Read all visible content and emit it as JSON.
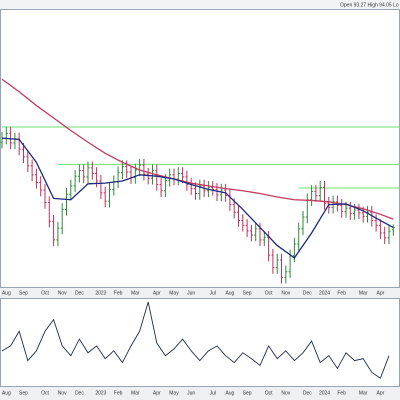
{
  "chart_data": {
    "type": "ohlc",
    "header": "Open 93.27 High 94.05  Lo",
    "ylim": [
      85,
      125
    ],
    "up_color": "#2e8b3a",
    "down_color": "#c2305c",
    "categories": [
      null,
      "Aug",
      null,
      null,
      null,
      "Sep",
      null,
      null,
      null,
      null,
      "Oct",
      null,
      null,
      null,
      "Nov",
      null,
      null,
      null,
      "Dec",
      null,
      null,
      null,
      null,
      "2023",
      null,
      null,
      null,
      "Feb",
      null,
      null,
      null,
      "Mar",
      null,
      null,
      null,
      null,
      "Apr",
      null,
      null,
      null,
      "May",
      null,
      null,
      null,
      "Jun",
      null,
      null,
      null,
      null,
      "Jul",
      null,
      null,
      null,
      "Aug",
      null,
      null,
      null,
      "Sep",
      null,
      null,
      null,
      null,
      "Oct",
      null,
      null,
      null,
      "Nov",
      null,
      null,
      null,
      null,
      "Dec",
      null,
      null,
      null,
      "2024",
      null,
      null,
      null,
      "Feb",
      null,
      null,
      null,
      null,
      "Mar",
      null,
      null,
      null,
      "Apr",
      null,
      null,
      null
    ],
    "open": [
      105.9,
      106.5,
      107.2,
      105.8,
      106.4,
      104.9,
      103.8,
      102.5,
      101.2,
      100.1,
      99.0,
      97.2,
      94.5,
      91.8,
      93.5,
      96.2,
      98.4,
      99.6,
      101.0,
      101.8,
      100.9,
      102.2,
      101.4,
      100.3,
      98.6,
      97.4,
      99.1,
      100.2,
      101.5,
      102.4,
      101.6,
      100.8,
      101.9,
      102.6,
      101.3,
      100.7,
      101.8,
      99.8,
      98.9,
      100.4,
      101.2,
      100.6,
      101.4,
      100.9,
      99.8,
      99.2,
      98.5,
      99.6,
      98.9,
      99.4,
      99.1,
      98.3,
      99.0,
      98.2,
      96.9,
      95.8,
      94.6,
      93.9,
      93.1,
      92.5,
      93.4,
      91.8,
      92.2,
      89.6,
      87.8,
      88.9,
      86.4,
      87.2,
      89.5,
      91.2,
      93.4,
      95.1,
      97.6,
      98.8,
      98.2,
      99.4,
      97.1,
      96.5,
      97.3,
      96.8,
      95.9,
      96.4,
      95.6,
      96.1,
      95.7,
      95.2,
      95.8,
      94.6,
      93.9,
      92.8,
      92.1,
      93.27
    ],
    "high": [
      107.4,
      108.1,
      108.1,
      107.3,
      107.3,
      105.8,
      104.7,
      103.4,
      102.1,
      101.0,
      99.9,
      98.1,
      95.4,
      94.4,
      97.1,
      99.3,
      100.5,
      101.9,
      102.7,
      102.7,
      103.1,
      103.1,
      102.3,
      101.2,
      99.5,
      100.0,
      101.1,
      102.4,
      103.3,
      103.3,
      102.5,
      102.8,
      103.5,
      103.5,
      102.2,
      102.7,
      102.7,
      100.7,
      101.3,
      102.1,
      102.1,
      102.3,
      102.3,
      101.8,
      100.7,
      100.1,
      100.5,
      100.5,
      100.3,
      100.3,
      100.0,
      99.9,
      99.9,
      99.1,
      97.8,
      96.7,
      95.5,
      94.8,
      94.0,
      94.3,
      94.3,
      93.1,
      93.1,
      90.5,
      89.8,
      89.8,
      88.1,
      90.4,
      92.1,
      94.3,
      96.0,
      98.5,
      99.7,
      99.7,
      100.3,
      100.3,
      98.0,
      98.2,
      98.2,
      97.7,
      97.3,
      97.3,
      97.0,
      97.0,
      96.6,
      96.7,
      96.7,
      95.5,
      94.8,
      93.7,
      93.9,
      94.05
    ],
    "low": [
      105.0,
      105.6,
      104.9,
      104.9,
      104.0,
      102.9,
      101.6,
      100.3,
      99.2,
      98.1,
      96.3,
      93.6,
      90.9,
      90.9,
      92.6,
      95.3,
      97.5,
      98.7,
      100.1,
      100.0,
      100.0,
      100.5,
      99.4,
      97.7,
      96.5,
      96.5,
      98.2,
      99.3,
      100.6,
      100.7,
      99.9,
      99.9,
      101.0,
      100.4,
      99.8,
      99.8,
      98.9,
      98.0,
      98.0,
      99.5,
      99.7,
      99.7,
      100.0,
      98.9,
      98.3,
      97.6,
      97.6,
      98.0,
      98.0,
      98.2,
      97.4,
      97.4,
      97.3,
      96.0,
      94.9,
      93.7,
      93.0,
      92.2,
      91.6,
      91.6,
      90.9,
      90.9,
      88.7,
      86.9,
      86.9,
      85.5,
      85.5,
      86.3,
      88.6,
      90.3,
      92.5,
      94.2,
      96.7,
      97.3,
      97.3,
      96.2,
      95.6,
      95.6,
      95.9,
      95.0,
      95.0,
      94.7,
      94.7,
      94.8,
      94.3,
      94.3,
      93.7,
      93.0,
      91.9,
      91.2,
      91.2,
      92.4
    ],
    "close": [
      106.5,
      107.2,
      105.8,
      106.4,
      104.9,
      103.8,
      102.5,
      101.2,
      100.1,
      99.0,
      97.2,
      94.5,
      91.8,
      93.5,
      96.2,
      98.4,
      99.6,
      101.0,
      101.8,
      100.9,
      102.2,
      101.4,
      100.3,
      98.6,
      97.4,
      99.1,
      100.2,
      101.5,
      102.4,
      101.6,
      100.8,
      101.9,
      102.6,
      101.3,
      100.7,
      101.8,
      99.8,
      98.9,
      100.4,
      101.2,
      100.6,
      101.4,
      100.9,
      99.8,
      99.2,
      98.5,
      99.6,
      98.9,
      99.4,
      99.1,
      98.3,
      99.0,
      98.2,
      96.9,
      95.8,
      94.6,
      93.9,
      93.1,
      92.5,
      93.4,
      91.8,
      92.2,
      89.6,
      87.8,
      88.9,
      86.4,
      87.2,
      89.5,
      91.2,
      93.4,
      95.1,
      97.6,
      98.8,
      98.2,
      99.4,
      97.1,
      96.5,
      97.3,
      96.8,
      95.9,
      96.4,
      95.6,
      96.1,
      95.7,
      95.2,
      95.8,
      94.6,
      93.9,
      92.8,
      92.1,
      93.0,
      93.6
    ],
    "ma_x": [
      0,
      4,
      8,
      12,
      16,
      20,
      24,
      28,
      32,
      36,
      40,
      44,
      48,
      52,
      56,
      60,
      64,
      68,
      72,
      76,
      80,
      84,
      88,
      91
    ],
    "moving_averages": [
      {
        "color": "#c23a5e",
        "values": [
          115.0,
          113.2,
          111.2,
          109.4,
          107.6,
          105.9,
          104.3,
          103.0,
          101.9,
          101.2,
          100.6,
          100.0,
          99.6,
          99.2,
          98.9,
          98.5,
          98.0,
          97.6,
          97.5,
          97.3,
          96.9,
          96.3,
          95.5,
          94.8
        ]
      },
      {
        "color": "#1c2a80",
        "values": [
          106.5,
          106.3,
          103.0,
          97.8,
          97.6,
          99.9,
          100.0,
          100.3,
          101.2,
          101.0,
          100.6,
          99.8,
          99.1,
          98.6,
          96.2,
          93.6,
          91.0,
          89.2,
          92.8,
          96.9,
          97.0,
          96.0,
          94.6,
          93.6
        ]
      }
    ],
    "horizontal_lines": {
      "color": "#6ee06e",
      "values": [
        108.1,
        102.7,
        99.3
      ],
      "start_index": [
        0,
        13,
        69
      ]
    },
    "indicator": {
      "type": "line",
      "color": "#1f2d50",
      "ylim": [
        0,
        100
      ],
      "x": [
        0,
        2,
        4,
        6,
        8,
        10,
        12,
        14,
        16,
        18,
        20,
        22,
        24,
        26,
        28,
        30,
        32,
        34,
        36,
        38,
        40,
        42,
        44,
        46,
        48,
        50,
        52,
        54,
        56,
        58,
        60,
        62,
        64,
        66,
        68,
        70,
        72,
        74,
        76,
        78,
        80,
        82,
        84,
        86,
        88,
        90
      ],
      "values": [
        40.2,
        46.0,
        63.2,
        28.7,
        40.2,
        63.2,
        77.0,
        46.0,
        34.5,
        54.0,
        37.9,
        46.0,
        31.0,
        40.2,
        26.4,
        46.0,
        63.2,
        97.7,
        49.4,
        34.5,
        42.5,
        54.0,
        40.2,
        28.7,
        40.2,
        46.0,
        34.5,
        26.4,
        37.9,
        31.0,
        23.0,
        46.0,
        31.0,
        40.2,
        28.7,
        37.9,
        51.7,
        26.4,
        34.5,
        19.5,
        37.9,
        28.7,
        31.0,
        14.9,
        8.0,
        34.5
      ]
    }
  }
}
